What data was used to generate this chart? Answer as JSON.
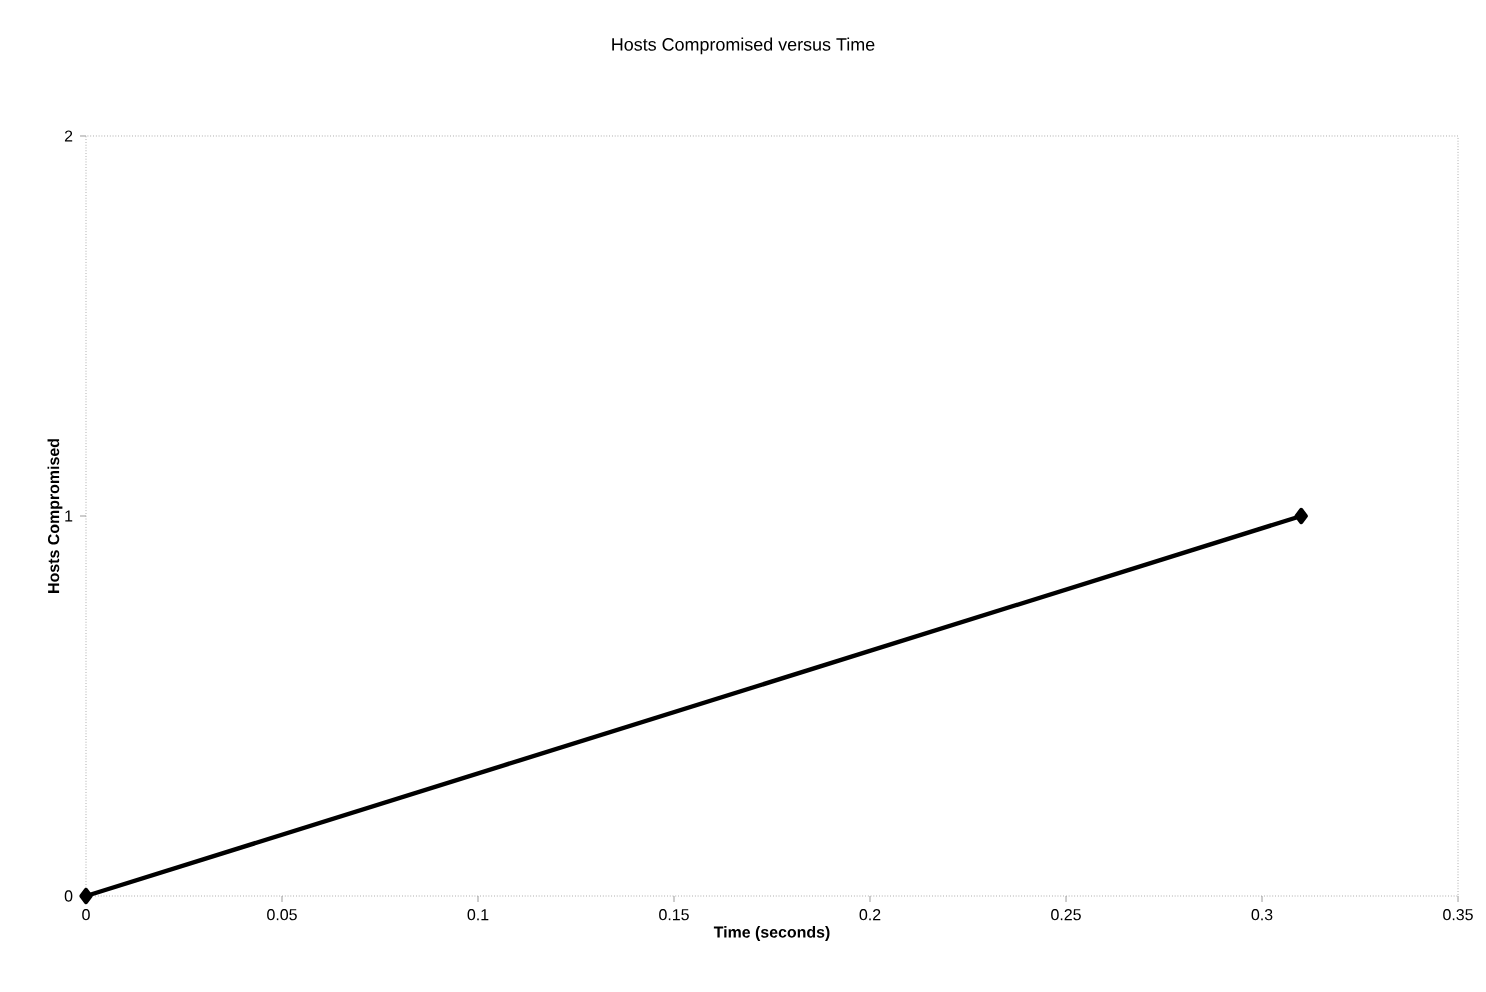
{
  "chart_data": {
    "type": "line",
    "title": "Hosts Compromised versus Time",
    "xlabel": "Time (seconds)",
    "ylabel": "Hosts Compromised",
    "x": [
      0,
      0.31
    ],
    "series": [
      {
        "color": "#000000",
        "values": [
          0,
          1
        ]
      }
    ],
    "xlim": [
      0,
      0.35
    ],
    "xticks": [
      0,
      0.05,
      0.1,
      0.15,
      0.2,
      0.25,
      0.3,
      0.35
    ],
    "ylim": [
      0,
      2
    ],
    "yticks": [
      0,
      1,
      2
    ],
    "marker": "diamond",
    "line_style": "solid"
  }
}
